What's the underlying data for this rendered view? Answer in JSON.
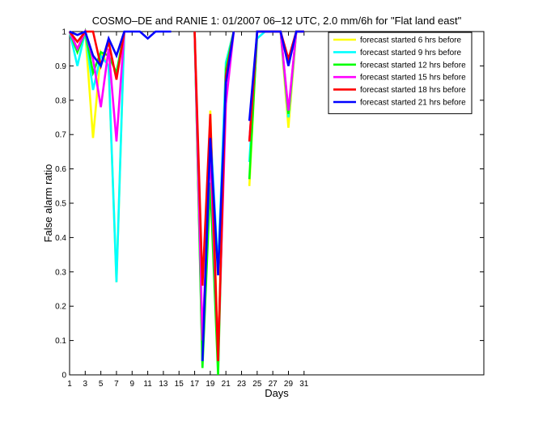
{
  "chart_data": {
    "type": "line",
    "title": "COSMO–DE and RANIE 1: 01/2007 06–12 UTC, 2.0 mm/6h for \"Flat land east\"",
    "xlabel": "Days",
    "ylabel": "False alarm ratio",
    "xlim": [
      1,
      54
    ],
    "ylim": [
      0,
      1
    ],
    "x_ticks": [
      1,
      3,
      5,
      7,
      9,
      11,
      13,
      15,
      17,
      19,
      21,
      23,
      25,
      27,
      29,
      31
    ],
    "y_ticks": [
      0,
      0.1,
      0.2,
      0.3,
      0.4,
      0.5,
      0.6,
      0.7,
      0.8,
      0.9,
      1
    ],
    "legend_position": "top-right",
    "grid": false,
    "series": [
      {
        "name": "forecast started 6 hrs before",
        "color": "#ffff00",
        "points": [
          [
            1,
            1
          ],
          [
            2,
            0.95
          ],
          [
            3,
            1
          ],
          [
            4,
            0.69
          ],
          [
            5,
            0.94
          ],
          [
            6,
            0.9
          ],
          [
            7,
            0.27
          ],
          [
            8,
            1
          ],
          [
            null,
            null
          ],
          [
            17,
            1
          ],
          [
            18,
            0.05
          ],
          [
            19,
            0.77
          ],
          [
            20,
            0.05
          ],
          [
            21,
            0.91
          ],
          [
            22,
            1
          ],
          [
            null,
            null
          ],
          [
            24,
            0.55
          ],
          [
            25,
            1
          ],
          [
            26,
            1
          ],
          [
            27,
            1
          ],
          [
            28,
            1
          ],
          [
            29,
            0.72
          ],
          [
            30,
            1
          ],
          [
            31,
            1
          ]
        ]
      },
      {
        "name": "forecast started 9 hrs before",
        "color": "#00ffff",
        "points": [
          [
            1,
            1
          ],
          [
            2,
            0.9
          ],
          [
            3,
            1
          ],
          [
            4,
            0.83
          ],
          [
            5,
            0.93
          ],
          [
            6,
            0.9
          ],
          [
            7,
            0.27
          ],
          [
            8,
            1
          ],
          [
            null,
            null
          ],
          [
            17,
            1
          ],
          [
            18,
            0.04
          ],
          [
            19,
            0.72
          ],
          [
            20,
            0.31
          ],
          [
            21,
            0.91
          ],
          [
            22,
            1
          ],
          [
            null,
            null
          ],
          [
            24,
            0.62
          ],
          [
            25,
            0.98
          ],
          [
            26,
            1
          ],
          [
            27,
            1
          ],
          [
            28,
            1
          ],
          [
            29,
            0.75
          ],
          [
            30,
            1
          ],
          [
            31,
            1
          ]
        ]
      },
      {
        "name": "forecast started 12 hrs before",
        "color": "#00ff00",
        "points": [
          [
            1,
            1
          ],
          [
            2,
            0.94
          ],
          [
            3,
            1
          ],
          [
            4,
            0.88
          ],
          [
            5,
            0.94
          ],
          [
            6,
            0.93
          ],
          [
            7,
            0.88
          ],
          [
            8,
            1
          ],
          [
            null,
            null
          ],
          [
            17,
            1
          ],
          [
            18,
            0.02
          ],
          [
            19,
            0.56
          ],
          [
            20,
            0
          ],
          [
            21,
            0.89
          ],
          [
            22,
            1
          ],
          [
            null,
            null
          ],
          [
            24,
            0.57
          ],
          [
            25,
            1
          ],
          [
            26,
            1
          ],
          [
            27,
            1
          ],
          [
            28,
            1
          ],
          [
            29,
            0.76
          ],
          [
            30,
            1
          ],
          [
            31,
            1
          ]
        ]
      },
      {
        "name": "forecast started 15 hrs before",
        "color": "#ff00ff",
        "points": [
          [
            1,
            1
          ],
          [
            2,
            0.95
          ],
          [
            3,
            1
          ],
          [
            4,
            0.92
          ],
          [
            5,
            0.78
          ],
          [
            6,
            0.95
          ],
          [
            7,
            0.68
          ],
          [
            8,
            1
          ],
          [
            null,
            null
          ],
          [
            17,
            1
          ],
          [
            18,
            0.1
          ],
          [
            19,
            0.65
          ],
          [
            20,
            0.06
          ],
          [
            21,
            0.79
          ],
          [
            22,
            1
          ],
          [
            null,
            null
          ],
          [
            24,
            0.68
          ],
          [
            25,
            1
          ],
          [
            26,
            1
          ],
          [
            27,
            1
          ],
          [
            28,
            1
          ],
          [
            29,
            0.77
          ],
          [
            30,
            1
          ],
          [
            31,
            1
          ]
        ]
      },
      {
        "name": "forecast started 18 hrs before",
        "color": "#ff0000",
        "points": [
          [
            1,
            1
          ],
          [
            2,
            0.97
          ],
          [
            3,
            1
          ],
          [
            4,
            1
          ],
          [
            5,
            0.9
          ],
          [
            6,
            0.97
          ],
          [
            7,
            0.86
          ],
          [
            8,
            1
          ],
          [
            null,
            null
          ],
          [
            17,
            1
          ],
          [
            18,
            0.26
          ],
          [
            19,
            0.76
          ],
          [
            20,
            0.04
          ],
          [
            21,
            0.87
          ],
          [
            22,
            1
          ],
          [
            null,
            null
          ],
          [
            24,
            0.68
          ],
          [
            25,
            1
          ],
          [
            26,
            1
          ],
          [
            27,
            1
          ],
          [
            28,
            1
          ],
          [
            29,
            0.92
          ],
          [
            30,
            1
          ],
          [
            31,
            1
          ]
        ]
      },
      {
        "name": "forecast started 21 hrs before",
        "color": "#0000ff",
        "points": [
          [
            1,
            1
          ],
          [
            2,
            0.99
          ],
          [
            3,
            1
          ],
          [
            4,
            0.93
          ],
          [
            5,
            0.9
          ],
          [
            6,
            0.98
          ],
          [
            7,
            0.93
          ],
          [
            8,
            1
          ],
          [
            9,
            1
          ],
          [
            10,
            1
          ],
          [
            11,
            0.98
          ],
          [
            12,
            1
          ],
          [
            13,
            1
          ],
          [
            14,
            1
          ],
          [
            null,
            null
          ],
          [
            18,
            0.04
          ],
          [
            19,
            0.69
          ],
          [
            20,
            0.29
          ],
          [
            21,
            0.85
          ],
          [
            22,
            1
          ],
          [
            null,
            null
          ],
          [
            24,
            0.74
          ],
          [
            25,
            1
          ],
          [
            26,
            1
          ],
          [
            27,
            1
          ],
          [
            28,
            1
          ],
          [
            29,
            0.9
          ],
          [
            30,
            1
          ],
          [
            31,
            1
          ]
        ]
      }
    ]
  }
}
